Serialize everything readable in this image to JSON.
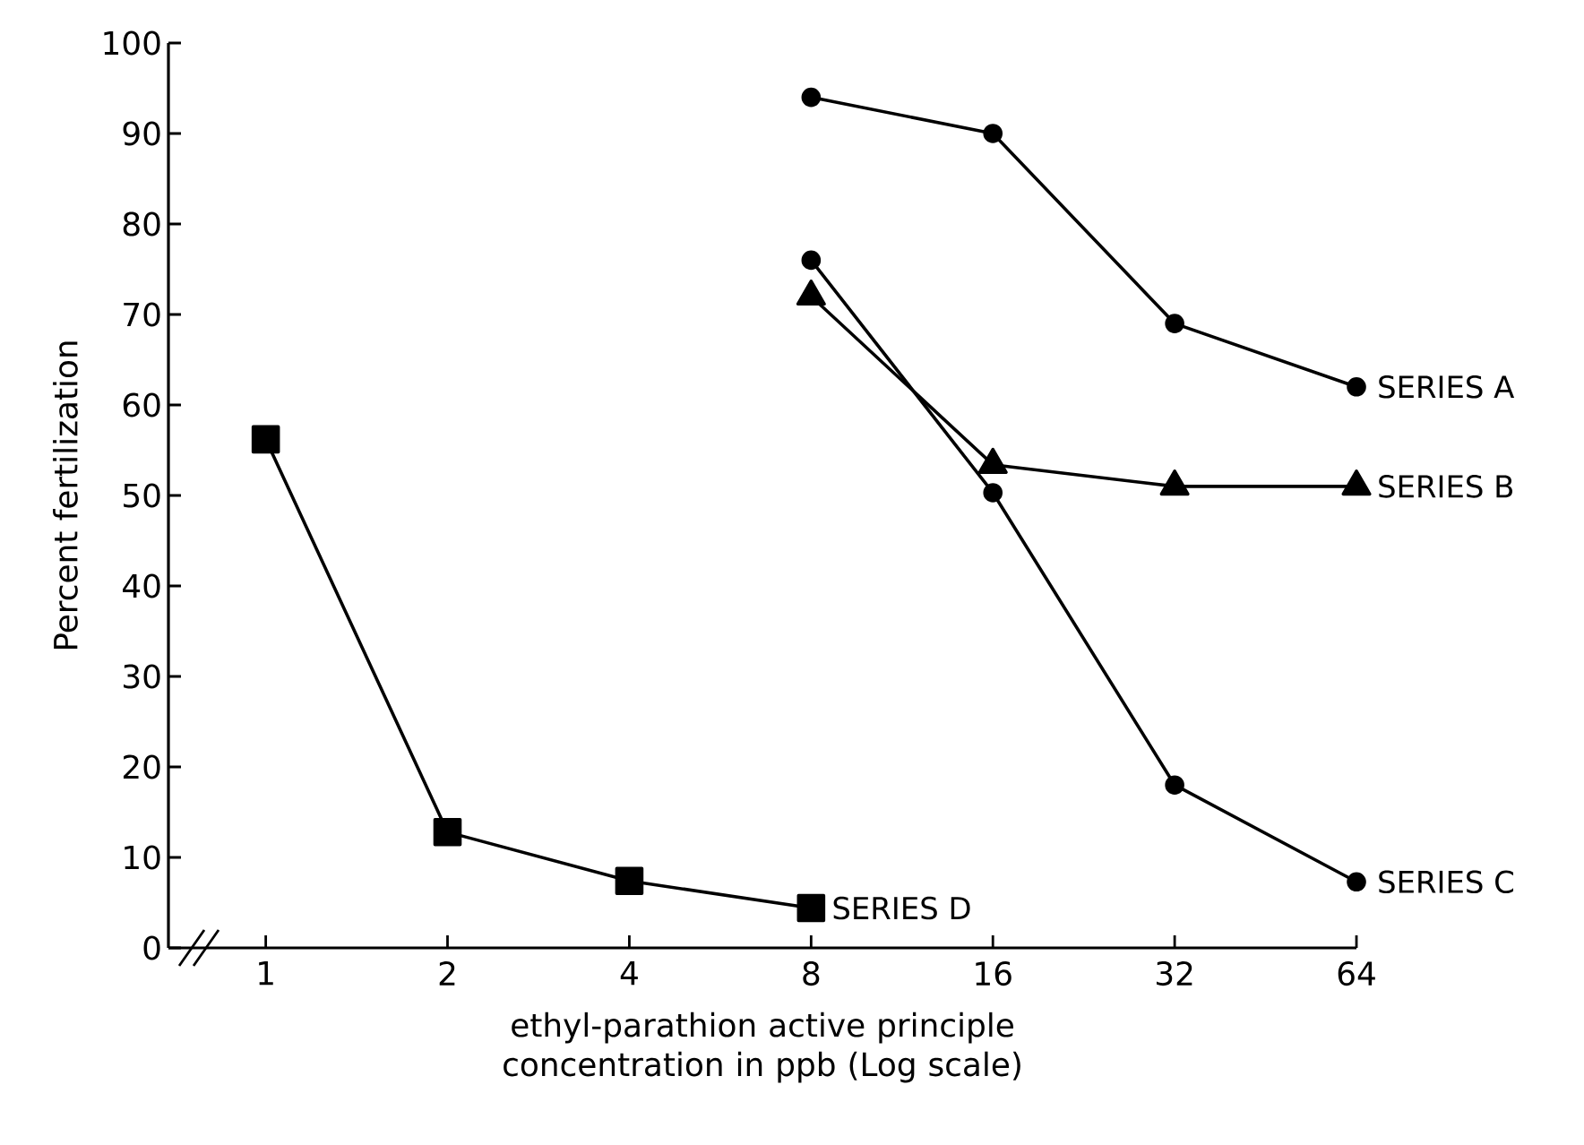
{
  "chart_data": {
    "type": "line",
    "xlabel": "ethyl-parathion  active principle concentration in ppb (Log scale)",
    "ylabel": "Percent fertilization",
    "log": "x",
    "xlim": [
      0.69,
      64
    ],
    "ylim": [
      0,
      100
    ],
    "xticks": [
      {
        "value": 1,
        "label": "1"
      },
      2,
      4,
      8,
      16,
      32,
      64
    ],
    "yticks": [
      0,
      10,
      20,
      30,
      40,
      50,
      60,
      70,
      80,
      90,
      100
    ],
    "line_style": "solid",
    "series": [
      {
        "name": "SERIES A",
        "color": "#000000",
        "marker": "circle",
        "x": [
          8,
          16,
          32,
          64
        ],
        "values": [
          94,
          90,
          69,
          62
        ]
      },
      {
        "name": "SERIES B",
        "color": "#000000",
        "marker": "triangle",
        "x": [
          8,
          16,
          32,
          64
        ],
        "values": [
          72,
          53.4,
          51,
          51
        ]
      },
      {
        "name": "SERIES C",
        "color": "#000000",
        "marker": "circle",
        "x": [
          8,
          16,
          32,
          64
        ],
        "values": [
          76,
          50.3,
          18,
          7.3
        ]
      },
      {
        "name": "SERIES D",
        "color": "#000000",
        "marker": "square",
        "x": [
          1,
          2,
          4,
          8
        ],
        "values": [
          56.2,
          12.8,
          7.4,
          4.4
        ]
      }
    ]
  }
}
